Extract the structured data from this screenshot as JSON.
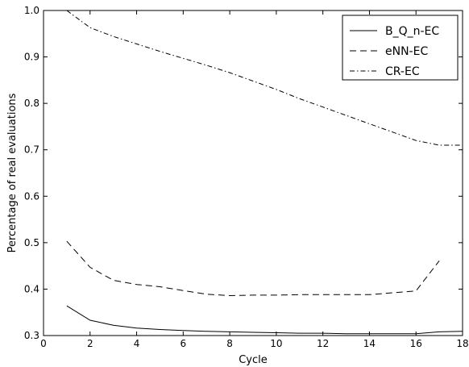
{
  "chart_data": {
    "type": "line",
    "title": "",
    "xlabel": "Cycle",
    "ylabel": "Percentage of real evaluations",
    "xlim": [
      0,
      18
    ],
    "ylim": [
      0.3,
      1.0
    ],
    "xticks": [
      0,
      2,
      4,
      6,
      8,
      10,
      12,
      14,
      16,
      18
    ],
    "yticks": [
      0.3,
      0.4,
      0.5,
      0.6,
      0.7,
      0.8,
      0.9,
      1.0
    ],
    "grid": false,
    "legend_position": "top-right",
    "series": [
      {
        "name": "B_Q_n-EC",
        "style": "solid",
        "color": "#000000",
        "x": [
          1,
          2,
          3,
          4,
          5,
          6,
          7,
          8,
          9,
          10,
          11,
          12,
          13,
          14,
          15,
          16,
          17,
          18
        ],
        "y": [
          0.364,
          0.333,
          0.322,
          0.316,
          0.313,
          0.311,
          0.309,
          0.308,
          0.307,
          0.306,
          0.305,
          0.305,
          0.304,
          0.304,
          0.304,
          0.304,
          0.308,
          0.309
        ]
      },
      {
        "name": "eNN-EC",
        "style": "dashed",
        "color": "#000000",
        "x": [
          1,
          2,
          3,
          4,
          5,
          6,
          7,
          8,
          9,
          10,
          11,
          12,
          13,
          14,
          15,
          16,
          17
        ],
        "y": [
          0.503,
          0.447,
          0.419,
          0.41,
          0.405,
          0.397,
          0.389,
          0.386,
          0.387,
          0.387,
          0.388,
          0.388,
          0.388,
          0.388,
          0.392,
          0.396,
          0.461
        ]
      },
      {
        "name": "CR-EC",
        "style": "dash-dot",
        "color": "#000000",
        "x": [
          1,
          2,
          3,
          4,
          5,
          6,
          7,
          8,
          9,
          10,
          11,
          12,
          13,
          14,
          15,
          16,
          17,
          18
        ],
        "y": [
          1.0,
          0.963,
          0.944,
          0.928,
          0.912,
          0.897,
          0.882,
          0.866,
          0.848,
          0.83,
          0.81,
          0.792,
          0.774,
          0.756,
          0.738,
          0.72,
          0.71,
          0.71
        ]
      }
    ]
  }
}
